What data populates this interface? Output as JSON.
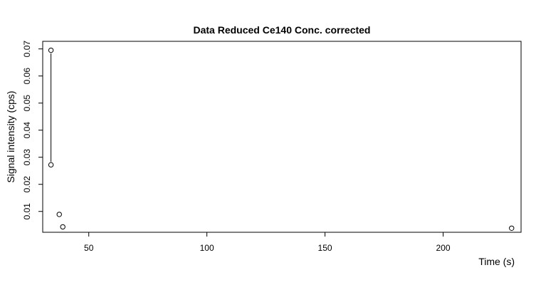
{
  "chart_data": {
    "type": "scatter",
    "title": "Data Reduced Ce140 Conc. corrected",
    "xlabel": "Time (s)",
    "ylabel": "Signal intensity (cps)",
    "xlim": [
      30.5,
      233
    ],
    "ylim": [
      0.0023,
      0.0728
    ],
    "x_ticks": [
      50,
      100,
      150,
      200
    ],
    "x_tick_labels": [
      "50",
      "100",
      "150",
      "200"
    ],
    "y_ticks": [
      0.01,
      0.02,
      0.03,
      0.04,
      0.05,
      0.06,
      0.07
    ],
    "y_tick_labels": [
      "0.01",
      "0.02",
      "0.03",
      "0.04",
      "0.05",
      "0.06",
      "0.07"
    ],
    "grid": false,
    "series": [
      {
        "points": [
          {
            "x": 34,
            "y": 0.0695
          },
          {
            "x": 34,
            "y": 0.0272
          },
          {
            "x": 37.5,
            "y": 0.0089
          },
          {
            "x": 39,
            "y": 0.0043
          },
          {
            "x": 229,
            "y": 0.0038
          }
        ],
        "line_segments": [
          [
            0,
            1
          ]
        ],
        "marker": "open-circle",
        "color": "#000000"
      }
    ]
  }
}
